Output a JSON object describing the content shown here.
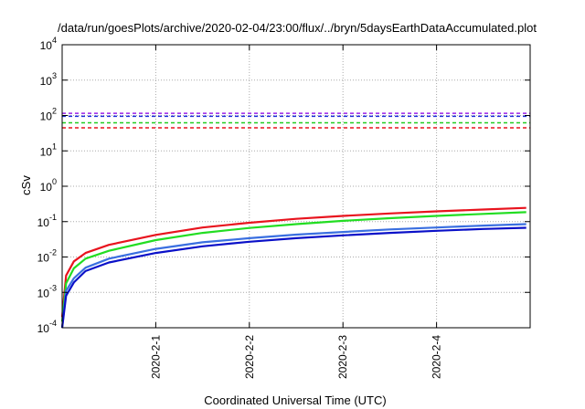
{
  "chart_data": {
    "type": "line",
    "title": "/data/run/goesPlots/archive/2020-02-04/23:00/flux/../bryn/5daysEarthDataAccumulated.plot",
    "xlabel": "Coordinated Universal Time (UTC)",
    "ylabel": "cSv",
    "yscale": "log",
    "ylim": [
      0.0001,
      10000
    ],
    "xlim": [
      "2020-01-31",
      "2020-02-05"
    ],
    "x_ticks": [
      "2020-2-1",
      "2020-2-2",
      "2020-2-3",
      "2020-2-4"
    ],
    "y_ticks": [
      {
        "base": "10",
        "exp": "-4",
        "value": 0.0001
      },
      {
        "base": "10",
        "exp": "-3",
        "value": 0.001
      },
      {
        "base": "10",
        "exp": "-2",
        "value": 0.01
      },
      {
        "base": "10",
        "exp": "-1",
        "value": 0.1
      },
      {
        "base": "10",
        "exp": "0",
        "value": 1
      },
      {
        "base": "10",
        "exp": "1",
        "value": 10
      },
      {
        "base": "10",
        "exp": "2",
        "value": 100
      },
      {
        "base": "10",
        "exp": "3",
        "value": 1000
      },
      {
        "base": "10",
        "exp": "4",
        "value": 10000
      }
    ],
    "grid": true,
    "series": [
      {
        "color": "#e8141e",
        "width": 2.2,
        "x": [
          "2020-01-31T00:00",
          "2020-01-31T01:00",
          "2020-01-31T03:00",
          "2020-01-31T06:00",
          "2020-01-31T12:00",
          "2020-02-01T00:00",
          "2020-02-01T12:00",
          "2020-02-02T00:00",
          "2020-02-02T12:00",
          "2020-02-03T00:00",
          "2020-02-03T12:00",
          "2020-02-04T00:00",
          "2020-02-04T12:00",
          "2020-02-04T23:00"
        ],
        "values": [
          0.0002,
          0.003,
          0.0075,
          0.013,
          0.022,
          0.042,
          0.068,
          0.093,
          0.12,
          0.145,
          0.17,
          0.195,
          0.22,
          0.245
        ]
      },
      {
        "color": "#22dd22",
        "width": 2.2,
        "x": [
          "2020-01-31T00:00",
          "2020-01-31T01:00",
          "2020-01-31T03:00",
          "2020-01-31T06:00",
          "2020-01-31T12:00",
          "2020-02-01T00:00",
          "2020-02-01T12:00",
          "2020-02-02T00:00",
          "2020-02-02T12:00",
          "2020-02-03T00:00",
          "2020-02-03T12:00",
          "2020-02-04T00:00",
          "2020-02-04T12:00",
          "2020-02-04T23:00"
        ],
        "values": [
          0.00015,
          0.0018,
          0.0048,
          0.009,
          0.015,
          0.03,
          0.048,
          0.066,
          0.085,
          0.105,
          0.125,
          0.145,
          0.165,
          0.185
        ]
      },
      {
        "color": "#3a6fe0",
        "width": 2.2,
        "x": [
          "2020-01-31T00:00",
          "2020-01-31T01:00",
          "2020-01-31T03:00",
          "2020-01-31T06:00",
          "2020-01-31T12:00",
          "2020-02-01T00:00",
          "2020-02-01T12:00",
          "2020-02-02T00:00",
          "2020-02-02T12:00",
          "2020-02-03T00:00",
          "2020-02-03T12:00",
          "2020-02-04T00:00",
          "2020-02-04T12:00",
          "2020-02-04T23:00"
        ],
        "values": [
          0.0001,
          0.0011,
          0.0025,
          0.005,
          0.009,
          0.017,
          0.026,
          0.034,
          0.043,
          0.051,
          0.06,
          0.068,
          0.077,
          0.085
        ]
      },
      {
        "color": "#0a10c8",
        "width": 2.2,
        "x": [
          "2020-01-31T00:00",
          "2020-01-31T01:00",
          "2020-01-31T03:00",
          "2020-01-31T06:00",
          "2020-01-31T12:00",
          "2020-02-01T00:00",
          "2020-02-01T12:00",
          "2020-02-02T00:00",
          "2020-02-02T12:00",
          "2020-02-03T00:00",
          "2020-02-03T12:00",
          "2020-02-04T00:00",
          "2020-02-04T12:00",
          "2020-02-04T23:00"
        ],
        "values": [
          0.0001,
          0.0008,
          0.0019,
          0.004,
          0.007,
          0.013,
          0.02,
          0.027,
          0.034,
          0.041,
          0.048,
          0.055,
          0.062,
          0.067
        ]
      }
    ],
    "thresholds": [
      {
        "color": "#9a22e6",
        "value": 115
      },
      {
        "color": "#1a2ad8",
        "value": 95
      },
      {
        "color": "#22cc22",
        "value": 62
      },
      {
        "color": "#e8141e",
        "value": 45
      }
    ]
  }
}
